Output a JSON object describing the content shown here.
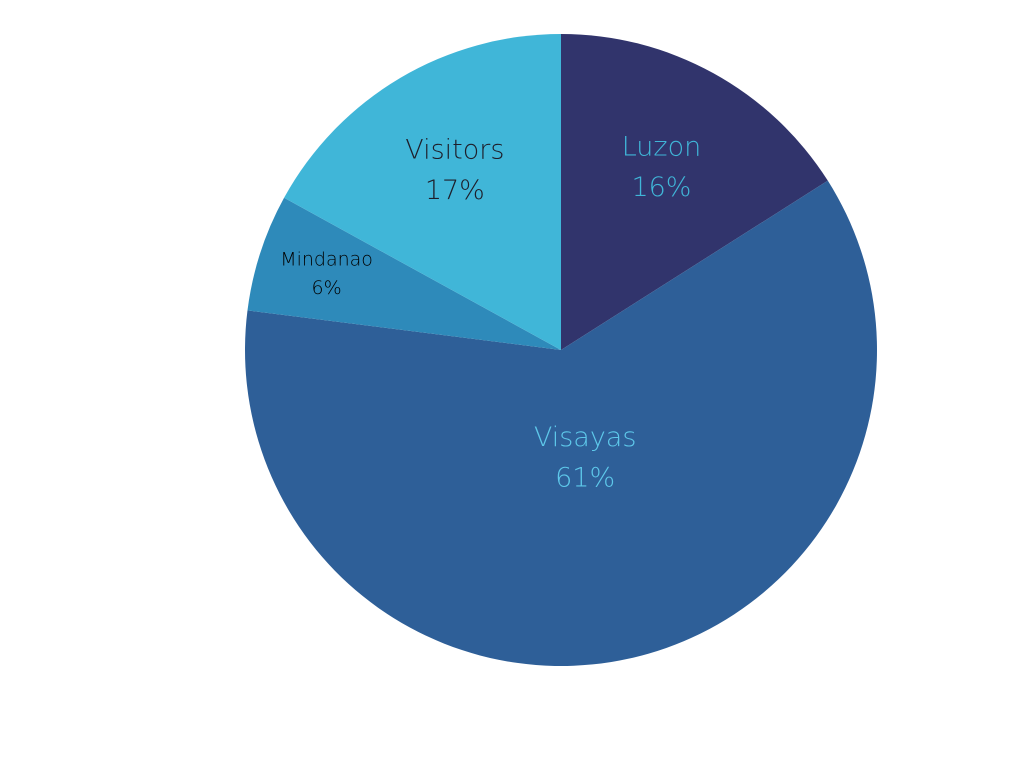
{
  "chart_data": {
    "type": "pie",
    "categories": [
      "Luzon",
      "Visayas",
      "Mindanao",
      "Visitors"
    ],
    "values": [
      16,
      61,
      6,
      17
    ],
    "value_labels": [
      "16%",
      "61%",
      "6%",
      "17%"
    ],
    "colors": [
      "#31346c",
      "#2e5f98",
      "#2e8aba",
      "#40b6d8"
    ],
    "label_colors": [
      "#40b6d8",
      "#5ec8ea",
      "#000000",
      "#1e1e2a"
    ],
    "start_angle": 0,
    "direction": "clockwise"
  }
}
